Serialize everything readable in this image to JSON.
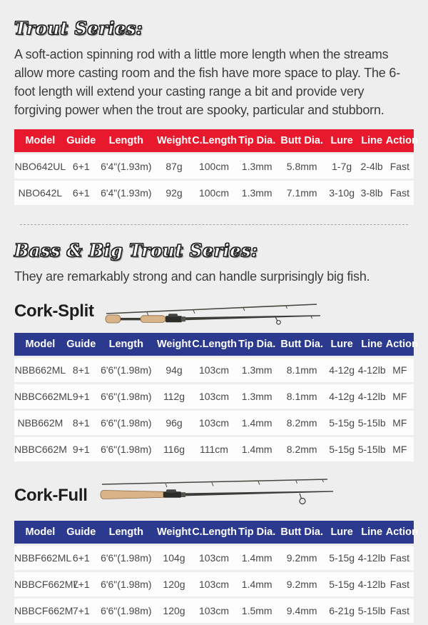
{
  "colors": {
    "page_bg": "#efeeee",
    "accent_red": "#e8182d",
    "accent_blue": "#2b3a8e",
    "cork": "#d9b488",
    "rod_blank": "#3c3c38"
  },
  "icons": {
    "cork_split_rod_image": "spinning-rod-with-split-cork-grip",
    "cork_full_rod_image": "spinning-rod-with-full-cork-grip"
  },
  "sections": {
    "trout": {
      "heading": "Trout Series:",
      "description": "A soft-action spinning rod with a little more length when the streams allow more casting room and the fish have more space to play. The 6-foot length will extend your casting range a bit and provide very forgiving power when the trout are spooky, particular and stubborn.",
      "table": {
        "columns": [
          "Model",
          "Guide",
          "Length",
          "Weight",
          "C.Length",
          "Tip Dia.",
          "Butt Dia.",
          "Lure",
          "Line",
          "Action"
        ],
        "rows": [
          [
            "NBO642UL",
            "6+1",
            "6'4\"(1.93m)",
            "87g",
            "100cm",
            "1.3mm",
            "5.8mm",
            "1-7g",
            "2-4lb",
            "Fast"
          ],
          [
            "NBO642L",
            "6+1",
            "6'4\"(1.93m)",
            "92g",
            "100cm",
            "1.3mm",
            "7.1mm",
            "3-10g",
            "3-8lb",
            "Fast"
          ]
        ]
      }
    },
    "bass": {
      "heading": "Bass & Big Trout Series:",
      "description": "They are remarkably strong and can handle surprisingly big fish.",
      "cork_split": {
        "label": "Cork-Split",
        "table": {
          "columns": [
            "Model",
            "Guide",
            "Length",
            "Weight",
            "C.Length",
            "Tip Dia.",
            "Butt Dia.",
            "Lure",
            "Line",
            "Action"
          ],
          "rows": [
            [
              "NBB662ML",
              "8+1",
              "6'6\"(1.98m)",
              "94g",
              "103cm",
              "1.3mm",
              "8.1mm",
              "4-12g",
              "4-12lb",
              "MF"
            ],
            [
              "NBBC662ML",
              "9+1",
              "6'6\"(1.98m)",
              "112g",
              "103cm",
              "1.3mm",
              "8.1mm",
              "4-12g",
              "4-12lb",
              "MF"
            ],
            [
              "NBB662M",
              "8+1",
              "6'6\"(1.98m)",
              "96g",
              "103cm",
              "1.4mm",
              "8.2mm",
              "5-15g",
              "5-15lb",
              "MF"
            ],
            [
              "NBBC662M",
              "9+1",
              "6'6\"(1.98m)",
              "116g",
              "111cm",
              "1.4mm",
              "8.2mm",
              "5-15g",
              "5-15lb",
              "MF"
            ]
          ]
        }
      },
      "cork_full": {
        "label": "Cork-Full",
        "table": {
          "columns": [
            "Model",
            "Guide",
            "Length",
            "Weight",
            "C.Length",
            "Tip Dia.",
            "Butt Dia.",
            "Lure",
            "Line",
            "Action"
          ],
          "rows": [
            [
              "NBBF662ML",
              "6+1",
              "6'6\"(1.98m)",
              "104g",
              "103cm",
              "1.4mm",
              "9.2mm",
              "5-15g",
              "4-12lb",
              "Fast"
            ],
            [
              "NBBCF662ML",
              "7+1",
              "6'6\"(1.98m)",
              "120g",
              "103cm",
              "1.4mm",
              "9.2mm",
              "5-15g",
              "4-12lb",
              "Fast"
            ],
            [
              "NBBCF662M",
              "7+1",
              "6'6\"(1.98m)",
              "120g",
              "103cm",
              "1.5mm",
              "9.4mm",
              "6-21g",
              "5-15lb",
              "Fast"
            ]
          ]
        }
      }
    }
  }
}
